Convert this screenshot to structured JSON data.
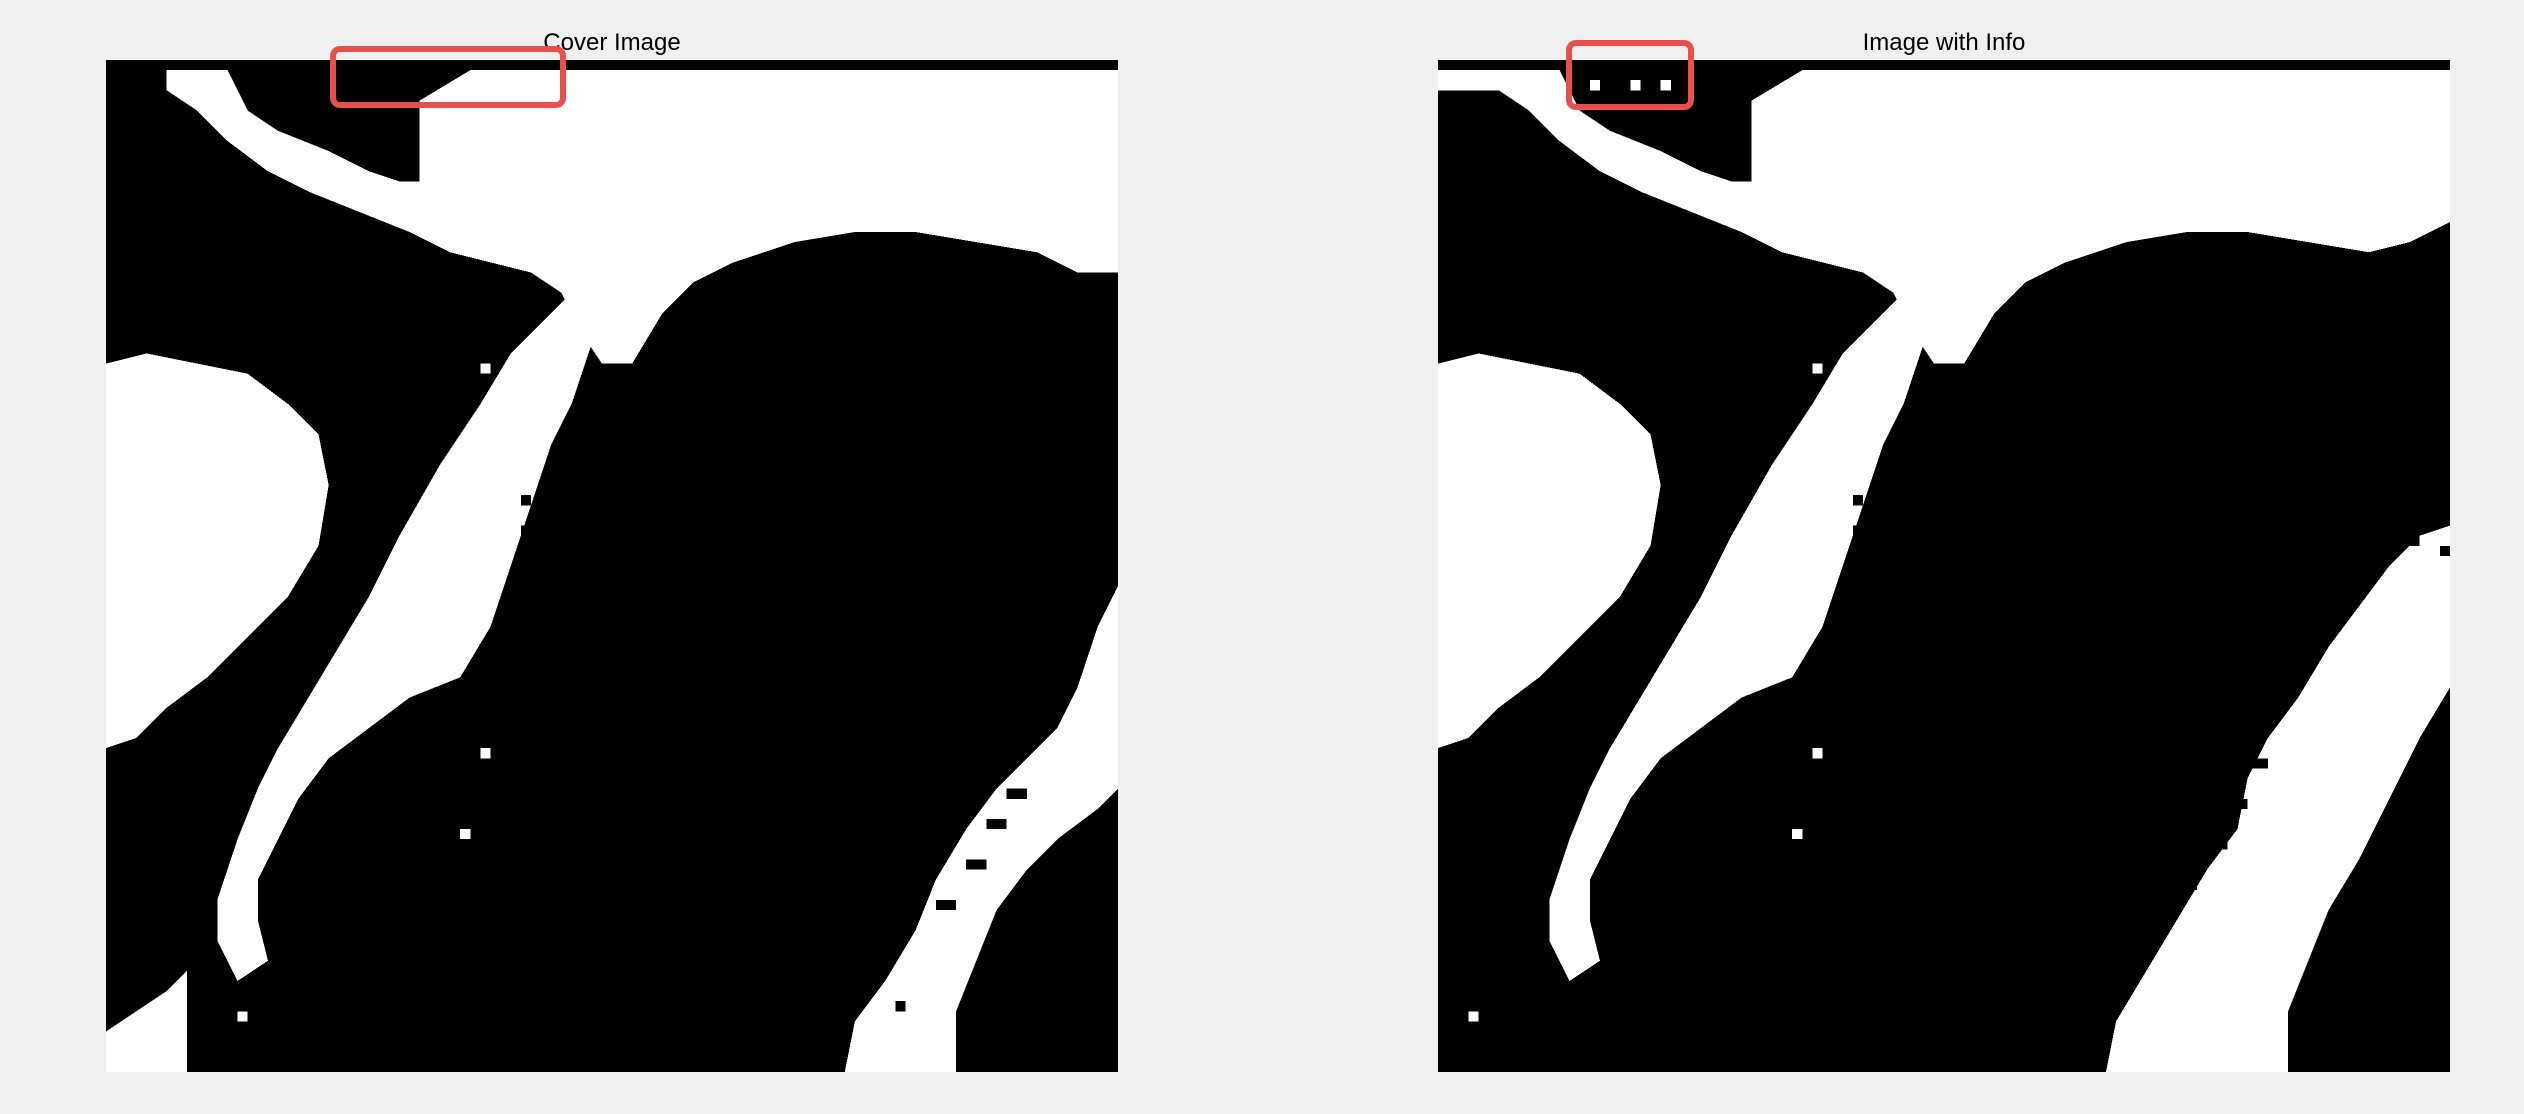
{
  "figure": {
    "panels": [
      {
        "title": "Cover Image",
        "highlight_color": "#e8504c"
      },
      {
        "title": "Image with Info",
        "highlight_color": "#e8504c"
      }
    ],
    "colors": {
      "background": "#f0f0f0",
      "foreground": "#000000",
      "white": "#ffffff"
    }
  }
}
